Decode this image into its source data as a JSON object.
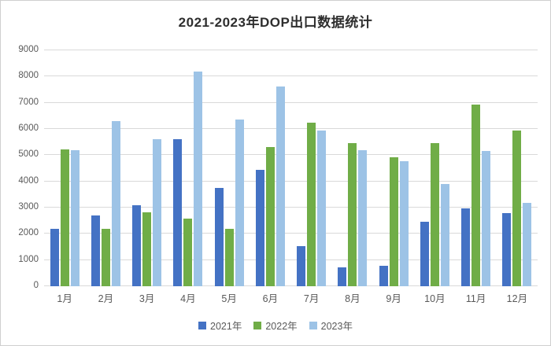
{
  "title": "2021-2023年DOP出口数据统计",
  "colors": {
    "series_2021": "#4472C4",
    "series_2022": "#70AD47",
    "series_2023": "#9DC3E6",
    "gridline": "#D9D9D9",
    "axis_text": "#595959",
    "title_text": "#2E2E2E",
    "frame_border": "#CFCFCF"
  },
  "chart_data": {
    "type": "bar",
    "title": "2021-2023年DOP出口数据统计",
    "categories": [
      "1月",
      "2月",
      "3月",
      "4月",
      "5月",
      "6月",
      "7月",
      "8月",
      "9月",
      "10月",
      "11月",
      "12月"
    ],
    "series": [
      {
        "name": "2021年",
        "color": "#4472C4",
        "values": [
          2200,
          2700,
          3100,
          5600,
          3750,
          4450,
          1520,
          720,
          780,
          2450,
          2980,
          2800
        ]
      },
      {
        "name": "2022年",
        "color": "#70AD47",
        "values": [
          5220,
          2200,
          2820,
          2580,
          2180,
          5320,
          6250,
          5450,
          4930,
          5450,
          6920,
          5950
        ]
      },
      {
        "name": "2023年",
        "color": "#9DC3E6",
        "values": [
          5180,
          6300,
          5620,
          8200,
          6350,
          7620,
          5950,
          5200,
          4770,
          3900,
          5170,
          3180
        ]
      }
    ],
    "xlabel": "",
    "ylabel": "",
    "ylim": [
      0,
      9000
    ],
    "ytick_interval": 1000,
    "yticks": [
      0,
      1000,
      2000,
      3000,
      4000,
      5000,
      6000,
      7000,
      8000,
      9000
    ],
    "grid": true,
    "legend_position": "bottom"
  }
}
